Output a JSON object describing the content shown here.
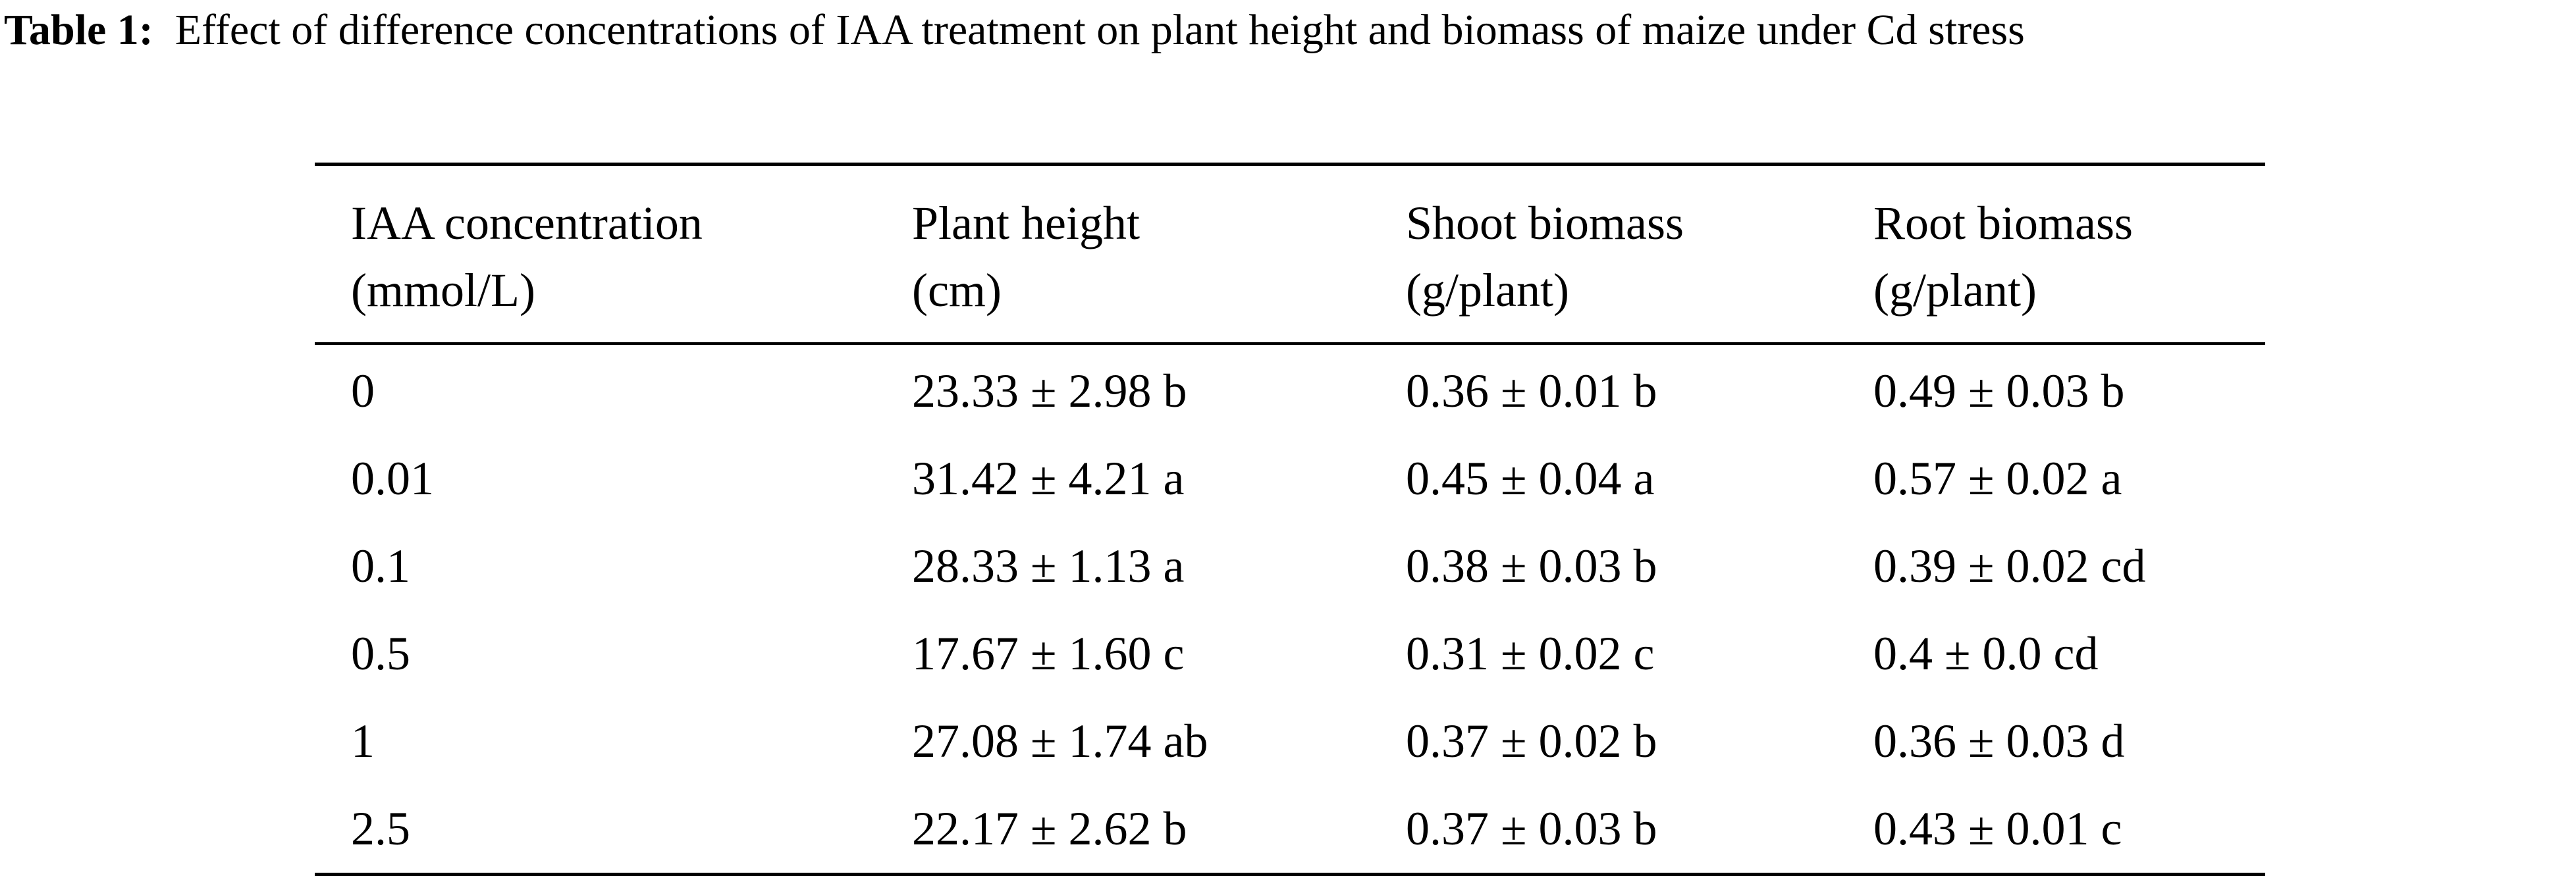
{
  "caption": {
    "label": "Table 1:",
    "text": "Effect of difference concentrations of IAA treatment on plant height and biomass of maize under Cd stress"
  },
  "table": {
    "headers": [
      {
        "line1": "IAA concentration",
        "line2": "(mmol/L)"
      },
      {
        "line1": "Plant height",
        "line2": "(cm)"
      },
      {
        "line1": "Shoot biomass",
        "line2": "(g/plant)"
      },
      {
        "line1": "Root biomass",
        "line2": "(g/plant)"
      }
    ],
    "rows": [
      [
        "0",
        "23.33 ± 2.98 b",
        "0.36 ± 0.01 b",
        "0.49 ± 0.03 b"
      ],
      [
        "0.01",
        "31.42 ± 4.21 a",
        "0.45 ± 0.04 a",
        "0.57 ± 0.02 a"
      ],
      [
        "0.1",
        "28.33 ± 1.13 a",
        "0.38 ± 0.03 b",
        "0.39 ± 0.02 cd"
      ],
      [
        "0.5",
        "17.67 ± 1.60 c",
        "0.31 ± 0.02 c",
        "0.4 ± 0.0 cd"
      ],
      [
        "1",
        "27.08 ± 1.74 ab",
        "0.37 ± 0.02 b",
        "0.36 ± 0.03 d"
      ],
      [
        "2.5",
        "22.17 ± 2.62 b",
        "0.37 ± 0.03 b",
        "0.43 ± 0.01 c"
      ]
    ]
  }
}
